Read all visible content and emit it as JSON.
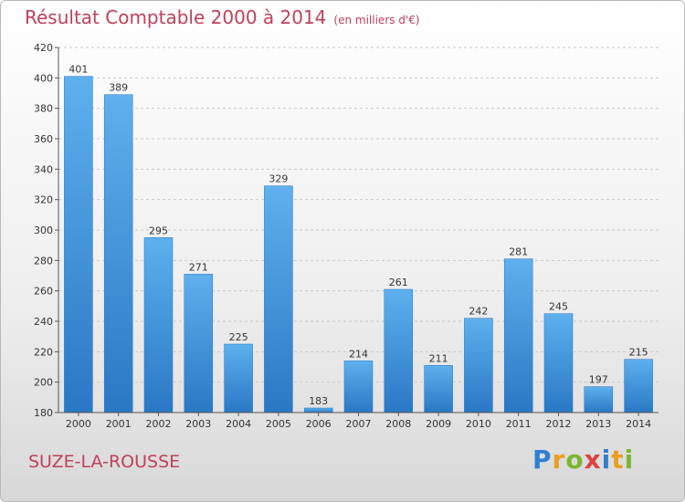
{
  "chart_data": {
    "type": "bar",
    "title": "Résultat Comptable 2000 à 2014",
    "subtitle": "(en milliers d'€)",
    "categories": [
      "2000",
      "2001",
      "2002",
      "2003",
      "2004",
      "2005",
      "2006",
      "2007",
      "2008",
      "2009",
      "2010",
      "2011",
      "2012",
      "2013",
      "2014"
    ],
    "values": [
      401,
      389,
      295,
      271,
      225,
      329,
      183,
      214,
      261,
      211,
      242,
      281,
      245,
      197,
      215
    ],
    "ylim": [
      180,
      420
    ],
    "yticks": [
      180,
      200,
      220,
      240,
      260,
      280,
      300,
      320,
      340,
      360,
      380,
      400,
      420
    ],
    "grid": true,
    "bar_color": "#3a8ed8"
  },
  "footer": {
    "city": "SUZE-LA-ROUSSE",
    "logo_letters": [
      "P",
      "r",
      "o",
      "x",
      "i",
      "t",
      "i"
    ],
    "logo_colors": [
      "#2f7fd0",
      "#e8a020",
      "#7ab830",
      "#e04040",
      "#2f7fd0",
      "#e8a020",
      "#7ab830"
    ]
  }
}
